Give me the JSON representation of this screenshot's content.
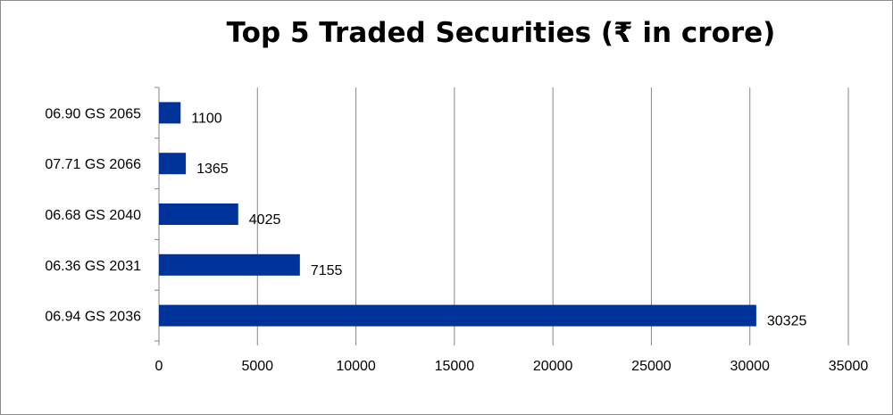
{
  "chart_data": {
    "type": "bar",
    "orientation": "horizontal",
    "title": "Top 5 Traded Securities (₹ in crore)",
    "categories": [
      "06.90 GS 2065",
      "07.71 GS 2066",
      "06.68 GS 2040",
      "06.36 GS 2031",
      "06.94 GS 2036"
    ],
    "values": [
      1100,
      1365,
      4025,
      7155,
      30325
    ],
    "x_ticks": [
      "0",
      "5000",
      "10000",
      "15000",
      "20000",
      "25000",
      "30000",
      "35000"
    ],
    "xlim": [
      0,
      35000
    ],
    "grid": "vertical",
    "data_labels": true,
    "bar_color": "#003399",
    "legend": "none"
  }
}
